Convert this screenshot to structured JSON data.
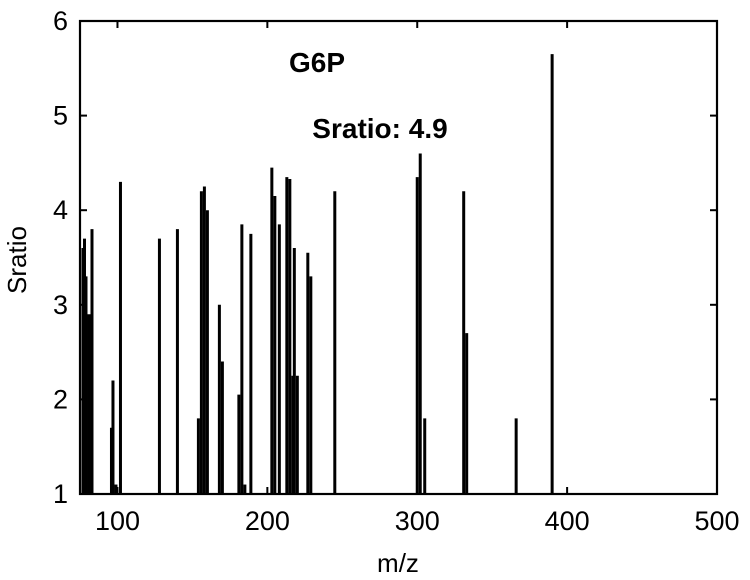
{
  "chart_data": {
    "type": "bar",
    "title": "G6P",
    "annotation": "Sratio: 4.9",
    "xlabel": "m/z",
    "ylabel": "Sratio",
    "xlim": [
      75,
      500
    ],
    "ylim": [
      1,
      6
    ],
    "xticks": [
      100,
      200,
      300,
      400,
      500
    ],
    "yticks": [
      1,
      2,
      3,
      4,
      5,
      6
    ],
    "grid": false,
    "bar_color": "#000000",
    "x": [
      77,
      78,
      79,
      81,
      83,
      96,
      97,
      99,
      102,
      128,
      140,
      154,
      156,
      158,
      160,
      168,
      170,
      181,
      183,
      185,
      189,
      203,
      205,
      208,
      213,
      215,
      217,
      218,
      220,
      227,
      229,
      245,
      300,
      302,
      305,
      331,
      333,
      366,
      390
    ],
    "values": [
      3.6,
      3.7,
      3.3,
      2.9,
      3.8,
      1.7,
      2.2,
      1.1,
      4.3,
      3.7,
      3.8,
      1.8,
      4.2,
      4.25,
      4.0,
      3.0,
      2.4,
      2.05,
      3.85,
      1.1,
      3.75,
      4.45,
      4.15,
      3.85,
      4.35,
      4.33,
      2.25,
      3.6,
      2.25,
      3.55,
      3.3,
      4.2,
      4.35,
      4.6,
      1.8,
      4.2,
      2.7,
      1.8,
      5.65
    ]
  }
}
